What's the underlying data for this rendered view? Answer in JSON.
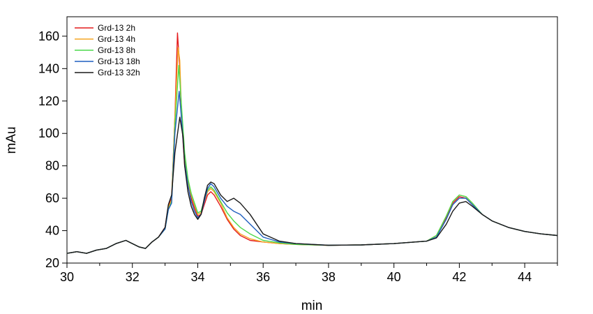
{
  "chart_data": {
    "type": "line",
    "title": "",
    "xlabel": "min",
    "ylabel": "mAu",
    "xlim": [
      30,
      45
    ],
    "ylim": [
      20,
      172
    ],
    "xticks": [
      30,
      32,
      34,
      36,
      38,
      40,
      42,
      44
    ],
    "yticks": [
      20,
      40,
      60,
      80,
      100,
      120,
      140,
      160
    ],
    "grid": false,
    "legend_position": "top-left",
    "series": [
      {
        "name": "Grd-13 2h",
        "color": "#e41a1c",
        "x": [
          30,
          30.3,
          30.6,
          30.9,
          31.2,
          31.5,
          31.8,
          32.0,
          32.2,
          32.4,
          32.6,
          32.8,
          33.0,
          33.1,
          33.2,
          33.3,
          33.38,
          33.45,
          33.5,
          33.6,
          33.7,
          33.8,
          33.9,
          34.0,
          34.1,
          34.2,
          34.3,
          34.4,
          34.5,
          34.7,
          34.9,
          35.1,
          35.3,
          35.6,
          36.0,
          36.5,
          37,
          38,
          39,
          40,
          41,
          41.3,
          41.6,
          41.8,
          42.0,
          42.2,
          42.4,
          42.7,
          43,
          43.5,
          44,
          44.5,
          45
        ],
        "y": [
          26,
          27,
          26,
          28,
          29,
          32,
          34,
          32,
          30,
          29,
          33,
          36,
          42,
          55,
          60,
          110,
          162,
          140,
          110,
          80,
          67,
          60,
          54,
          49,
          50,
          56,
          62,
          64,
          62,
          55,
          47,
          41,
          37,
          34,
          33,
          32,
          31.5,
          31,
          31.2,
          32,
          33.5,
          37,
          48,
          57,
          61,
          60,
          56,
          50,
          46,
          42,
          39.5,
          38,
          37
        ]
      },
      {
        "name": "Grd-13 4h",
        "color": "#f5a623",
        "x": [
          30,
          30.3,
          30.6,
          30.9,
          31.2,
          31.5,
          31.8,
          32.0,
          32.2,
          32.4,
          32.6,
          32.8,
          33.0,
          33.1,
          33.2,
          33.3,
          33.4,
          33.45,
          33.5,
          33.6,
          33.7,
          33.8,
          33.9,
          34.0,
          34.1,
          34.2,
          34.3,
          34.4,
          34.5,
          34.7,
          34.9,
          35.1,
          35.3,
          35.6,
          36.0,
          36.5,
          37,
          38,
          39,
          40,
          41,
          41.3,
          41.6,
          41.8,
          42.0,
          42.2,
          42.4,
          42.7,
          43,
          43.5,
          44,
          44.5,
          45
        ],
        "y": [
          26,
          27,
          26,
          28,
          29,
          32,
          34,
          32,
          30,
          29,
          33,
          36,
          41,
          54,
          59,
          110,
          153,
          145,
          115,
          85,
          70,
          62,
          56,
          50,
          51,
          58,
          64,
          66,
          64,
          57,
          48,
          42,
          38,
          35,
          33,
          32,
          31.5,
          31,
          31.2,
          32,
          33.5,
          37,
          49,
          58,
          62,
          61,
          57,
          50,
          46,
          42,
          39.5,
          38,
          37
        ]
      },
      {
        "name": "Grd-13 8h",
        "color": "#4cd94c",
        "x": [
          30,
          30.3,
          30.6,
          30.9,
          31.2,
          31.5,
          31.8,
          32.0,
          32.2,
          32.4,
          32.6,
          32.8,
          33.0,
          33.1,
          33.2,
          33.3,
          33.42,
          33.5,
          33.6,
          33.7,
          33.8,
          33.9,
          34.0,
          34.1,
          34.2,
          34.3,
          34.4,
          34.5,
          34.7,
          34.9,
          35.1,
          35.3,
          35.6,
          36.0,
          36.5,
          37,
          38,
          39,
          40,
          41,
          41.3,
          41.6,
          41.8,
          42.0,
          42.2,
          42.4,
          42.7,
          43,
          43.5,
          44,
          44.5,
          45
        ],
        "y": [
          26,
          27,
          26,
          28,
          29,
          32,
          34,
          32,
          30,
          29,
          33,
          36,
          41,
          53,
          58,
          105,
          142,
          118,
          88,
          72,
          63,
          57,
          51,
          52,
          59,
          65,
          67,
          65,
          58,
          51,
          46,
          42,
          38,
          34,
          32.5,
          31.5,
          31,
          31.2,
          32,
          33.5,
          37,
          49,
          58,
          62,
          61,
          57,
          50,
          46,
          42,
          39.5,
          38,
          37
        ]
      },
      {
        "name": "Grd-13 18h",
        "color": "#1f5fbf",
        "x": [
          30,
          30.3,
          30.6,
          30.9,
          31.2,
          31.5,
          31.8,
          32.0,
          32.2,
          32.4,
          32.6,
          32.8,
          33.0,
          33.1,
          33.2,
          33.3,
          33.43,
          33.5,
          33.6,
          33.7,
          33.8,
          33.9,
          34.0,
          34.1,
          34.2,
          34.3,
          34.4,
          34.5,
          34.7,
          34.9,
          35.1,
          35.3,
          35.6,
          36.0,
          36.5,
          37,
          38,
          39,
          40,
          41,
          41.3,
          41.6,
          41.8,
          42.0,
          42.2,
          42.4,
          42.7,
          43,
          43.5,
          44,
          44.5,
          45
        ],
        "y": [
          26,
          27,
          26,
          28,
          29,
          32,
          34,
          32,
          30,
          29,
          33,
          36,
          41,
          53,
          57,
          100,
          126,
          110,
          82,
          68,
          58,
          52,
          48,
          50,
          58,
          66,
          69,
          67,
          60,
          55,
          52,
          50,
          44,
          36,
          33,
          32,
          31,
          31.2,
          32,
          33.5,
          36,
          47,
          56,
          60,
          60,
          56,
          50,
          46,
          42,
          39.5,
          38,
          37
        ]
      },
      {
        "name": "Grd-13 32h",
        "color": "#1a1a1a",
        "x": [
          30,
          30.3,
          30.6,
          30.9,
          31.2,
          31.5,
          31.8,
          32.0,
          32.2,
          32.4,
          32.6,
          32.8,
          33.0,
          33.1,
          33.2,
          33.3,
          33.45,
          33.55,
          33.6,
          33.7,
          33.8,
          33.9,
          34.0,
          34.1,
          34.2,
          34.3,
          34.4,
          34.5,
          34.7,
          34.9,
          35.1,
          35.3,
          35.6,
          36.0,
          36.5,
          37,
          38,
          39,
          40,
          41,
          41.3,
          41.6,
          41.8,
          42.0,
          42.2,
          42.4,
          42.7,
          43,
          43.5,
          44,
          44.5,
          45
        ],
        "y": [
          26,
          27,
          26,
          28,
          29,
          32,
          34,
          32,
          30,
          29,
          33,
          36,
          42,
          56,
          62,
          88,
          110,
          98,
          80,
          64,
          55,
          50,
          47,
          50,
          60,
          68,
          70,
          69,
          62,
          58,
          60,
          57,
          50,
          38,
          33.5,
          32,
          31,
          31.2,
          32,
          33.5,
          35.5,
          44,
          52,
          57,
          58,
          55,
          50,
          46,
          42,
          39.5,
          38,
          37
        ]
      }
    ]
  }
}
